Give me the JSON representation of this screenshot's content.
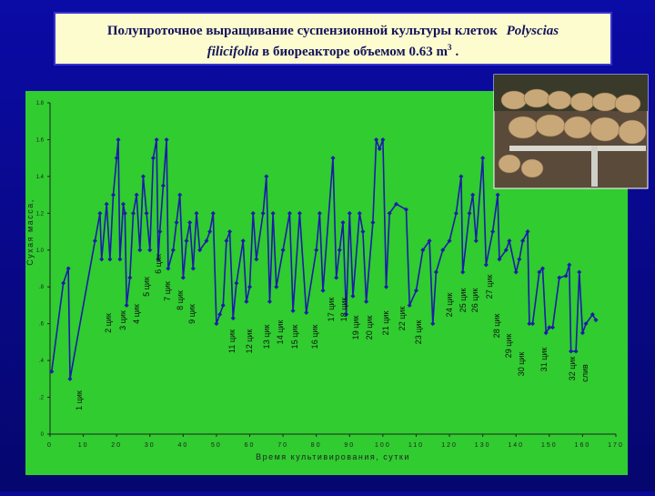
{
  "header": {
    "title_part1": "Полупроточное выращивание суспензионной культуры клеток",
    "species_1": "Polyscias",
    "species_2": "filicifolia",
    "title_part2": "в биореакторе объемом  0.63 m",
    "sup": "3",
    "end": "."
  },
  "chart_data": {
    "type": "line",
    "x_label": "Время культивирования, сутки",
    "y_label": "Сухая масса,",
    "xlim": [
      0,
      170
    ],
    "xticks": [
      0,
      10,
      20,
      30,
      40,
      50,
      60,
      70,
      80,
      90,
      100,
      110,
      120,
      130,
      140,
      150,
      160,
      170
    ],
    "ylim": [
      0,
      1.8
    ],
    "yticks": [
      0,
      {
        "value": 0.2,
        "label": ".2"
      },
      {
        "value": 0.4,
        "label": ".4"
      },
      {
        "value": 0.6,
        "label": ".6"
      },
      {
        "value": 0.8,
        "label": ".8"
      },
      {
        "value": 1.0,
        "label": "1.0"
      },
      1.2,
      1.4,
      1.6,
      1.8
    ],
    "grid": false,
    "x": [
      0.5,
      4,
      5.5,
      6,
      13.5,
      15,
      15.5,
      17,
      18,
      19,
      20,
      20.5,
      21,
      22,
      22.5,
      23,
      24,
      25,
      26,
      27,
      28,
      29,
      30,
      31,
      32,
      32.5,
      33,
      34,
      35,
      35.5,
      37,
      38,
      39,
      40,
      41,
      42,
      43,
      44,
      45,
      47,
      48,
      49,
      50,
      51,
      52,
      53,
      54,
      55,
      56,
      58,
      59,
      60,
      61,
      62,
      64,
      65,
      66,
      67,
      68,
      70,
      72,
      73,
      75,
      77,
      80,
      81,
      82,
      85,
      86,
      87,
      88,
      89,
      90,
      91,
      93,
      94,
      95,
      97,
      98,
      99,
      100,
      101,
      102,
      104,
      107,
      108,
      110,
      112,
      114,
      115,
      116,
      118,
      120,
      122,
      123.5,
      124,
      126,
      127,
      128,
      130,
      131,
      133,
      134.5,
      135,
      137,
      138,
      140,
      141,
      142,
      143.5,
      144,
      145,
      147,
      148,
      149,
      150,
      151,
      153,
      155,
      156,
      156.5,
      158,
      159,
      160,
      161,
      163,
      164
    ],
    "series": [
      {
        "name": "Сухая масса",
        "color": "#1c1ca8",
        "values": [
          0.34,
          0.82,
          0.9,
          0.3,
          1.05,
          1.2,
          0.95,
          1.25,
          0.95,
          1.3,
          1.5,
          1.6,
          0.95,
          1.25,
          1.2,
          0.7,
          0.85,
          1.2,
          1.3,
          1.0,
          1.4,
          1.2,
          1.0,
          1.5,
          1.6,
          0.95,
          1.1,
          1.35,
          1.6,
          0.9,
          1.0,
          1.15,
          1.3,
          0.85,
          1.05,
          1.15,
          0.9,
          1.2,
          1.0,
          1.05,
          1.1,
          1.2,
          0.6,
          0.65,
          0.7,
          1.05,
          1.1,
          0.63,
          0.82,
          1.05,
          0.72,
          0.8,
          1.2,
          0.95,
          1.2,
          1.4,
          0.72,
          1.2,
          0.8,
          1.0,
          1.2,
          0.67,
          1.2,
          0.66,
          1.0,
          1.2,
          0.78,
          1.5,
          0.85,
          1.0,
          1.15,
          0.65,
          1.2,
          0.75,
          1.2,
          1.1,
          0.72,
          1.15,
          1.6,
          1.55,
          1.6,
          0.8,
          1.2,
          1.25,
          1.22,
          0.7,
          0.78,
          1.0,
          1.05,
          0.6,
          0.88,
          1.0,
          1.05,
          1.2,
          1.4,
          0.88,
          1.2,
          1.3,
          1.05,
          1.5,
          0.92,
          1.1,
          1.3,
          0.95,
          1.0,
          1.05,
          0.88,
          0.95,
          1.05,
          1.1,
          0.6,
          0.6,
          0.88,
          0.9,
          0.55,
          0.58,
          0.58,
          0.85,
          0.86,
          0.92,
          0.45,
          0.45,
          0.88,
          0.55,
          0.6,
          0.65,
          0.62
        ]
      }
    ],
    "annotations": [
      "1 цик",
      "2 цик",
      "3 цик",
      "4 цик",
      "5 цик",
      "6 цик",
      "7 цик",
      "8 цик",
      "9 цик",
      "11 цик",
      "12 цик",
      "13 цик",
      "14 цик",
      "15 цик",
      "16 цик",
      "17 цик",
      "18 цик",
      "19 цик",
      "20 цик",
      "21 цик",
      "22 цик",
      "23 цик",
      "24 цик",
      "25 цик",
      "26 цик",
      "27 цик",
      "28 цик",
      "29 цик",
      "30 цик",
      "31 цик",
      "32 цик",
      "слив"
    ]
  }
}
